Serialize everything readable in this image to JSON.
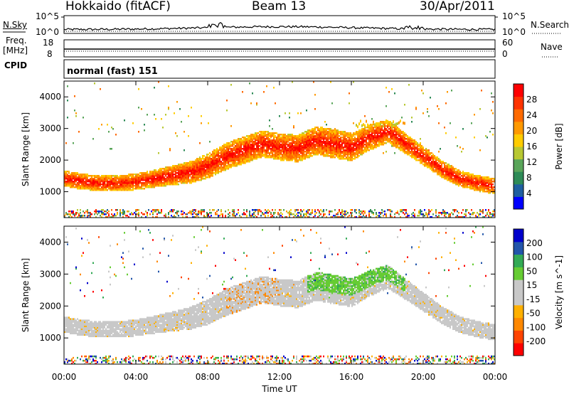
{
  "header": {
    "station": "Hokkaido (fitACF)",
    "beam": "Beam 13",
    "date": "30/Apr/2011"
  },
  "left_labels": {
    "nsky": "N.Sky",
    "freq": "Freq.",
    "freq_unit": "[MHz]",
    "cpid": "CPID"
  },
  "right_labels": {
    "nsearch": "N.Search",
    "nave": "Nave"
  },
  "noise_ticks_left": [
    "10^5",
    "10^0"
  ],
  "noise_ticks_right": [
    "10^5",
    "10^0"
  ],
  "freq_ticks": [
    "18",
    "8"
  ],
  "nave_ticks": [
    "60",
    "0"
  ],
  "cpid_text": "normal (fast) 151",
  "colors": {
    "power_scale": [
      "#0000ff",
      "#1f5fa0",
      "#2e8b57",
      "#5aa55a",
      "#b8c832",
      "#ffcc00",
      "#ff9900",
      "#ff6a00",
      "#ff3300",
      "#ff0000"
    ],
    "velocity_scale": [
      "#ff0000",
      "#ff4400",
      "#ff8800",
      "#ffb000",
      "#c8c8c8",
      "#c8c8c8",
      "#66cc33",
      "#33aa55",
      "#2255aa",
      "#0000cc"
    ]
  },
  "chart_data": [
    {
      "type": "heatmap",
      "title": "",
      "xlabel": "",
      "ylabel": "Slant Range [km]",
      "colorbar_label": "Power [dB]",
      "colorbar_ticks": [
        "4",
        "8",
        "12",
        "16",
        "20",
        "24",
        "28"
      ],
      "ylim": [
        180,
        4500
      ],
      "yticks": [
        "1000",
        "2000",
        "3000",
        "4000"
      ],
      "xticks": [
        "00:00",
        "04:00",
        "08:00",
        "12:00",
        "16:00",
        "20:00",
        "00:00"
      ],
      "x_hours": [
        0,
        24
      ],
      "band_center_km": [
        [
          0,
          1400
        ],
        [
          1,
          1300
        ],
        [
          2,
          1250
        ],
        [
          3,
          1250
        ],
        [
          4,
          1300
        ],
        [
          5,
          1400
        ],
        [
          6,
          1500
        ],
        [
          7,
          1600
        ],
        [
          8,
          1800
        ],
        [
          9,
          2100
        ],
        [
          10,
          2300
        ],
        [
          11,
          2500
        ],
        [
          12,
          2400
        ],
        [
          13,
          2350
        ],
        [
          14,
          2600
        ],
        [
          15,
          2500
        ],
        [
          16,
          2400
        ],
        [
          17,
          2700
        ],
        [
          18,
          2900
        ],
        [
          19,
          2500
        ],
        [
          20,
          2100
        ],
        [
          21,
          1700
        ],
        [
          22,
          1400
        ],
        [
          23,
          1250
        ],
        [
          24,
          1150
        ]
      ]
    },
    {
      "type": "heatmap",
      "title": "",
      "xlabel": "Time UT",
      "ylabel": "Slant Range [km]",
      "colorbar_label": "Velocity [m s^-1]",
      "colorbar_ticks": [
        "-200",
        "-100",
        "-50",
        "-15",
        "15",
        "50",
        "100",
        "200"
      ],
      "ylim": [
        180,
        4500
      ],
      "yticks": [
        "1000",
        "2000",
        "3000",
        "4000"
      ],
      "xticks": [
        "00:00",
        "04:00",
        "08:00",
        "12:00",
        "16:00",
        "20:00",
        "00:00"
      ],
      "x_hours": [
        0,
        24
      ]
    }
  ]
}
